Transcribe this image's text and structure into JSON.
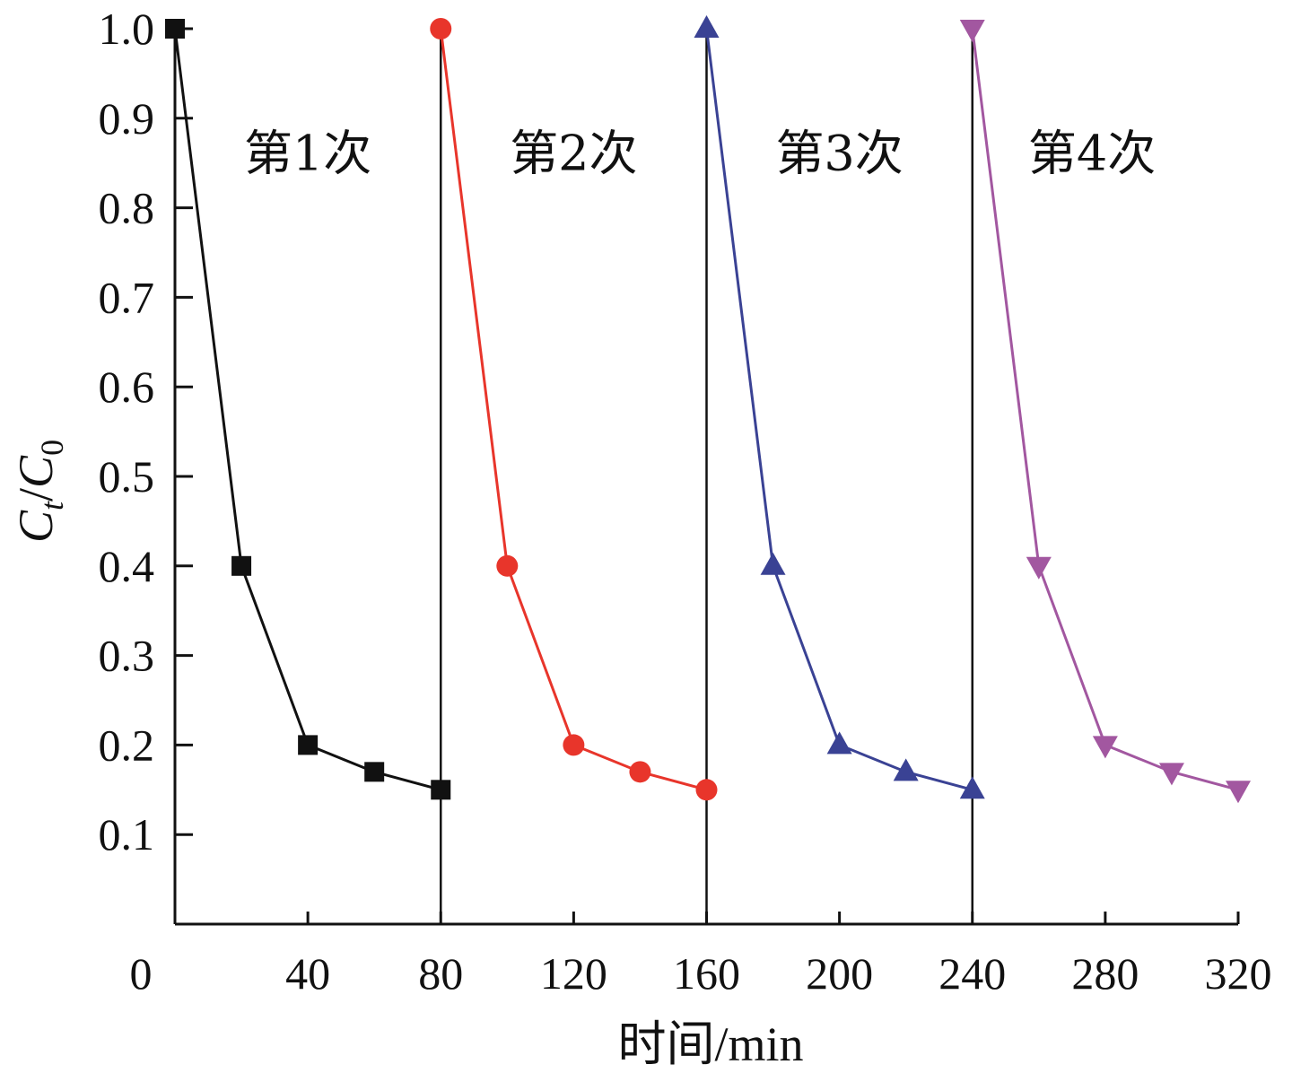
{
  "chart_data": {
    "type": "line",
    "xlabel": "时间/min",
    "ylabel_parts": {
      "main": "C",
      "sub_t": "t",
      "slash": "/",
      "main2": "C",
      "sub_0": "0"
    },
    "xlim": [
      0,
      320
    ],
    "ylim": [
      0,
      1.0
    ],
    "xticks": [
      0,
      40,
      80,
      120,
      160,
      200,
      240,
      280,
      320
    ],
    "yticks": [
      0.1,
      0.2,
      0.3,
      0.4,
      0.5,
      0.6,
      0.7,
      0.8,
      0.9,
      1.0
    ],
    "ytick_labels": [
      "0.1",
      "0.2",
      "0.3",
      "0.4",
      "0.5",
      "0.6",
      "0.7",
      "0.8",
      "0.9",
      "1.0"
    ],
    "separators_x": [
      80,
      160,
      240
    ],
    "grid": false,
    "series": [
      {
        "color": "#111111",
        "marker": "square",
        "x": [
          0,
          20,
          40,
          60,
          80
        ],
        "y": [
          1.0,
          0.4,
          0.2,
          0.17,
          0.15
        ]
      },
      {
        "color": "#e8352b",
        "marker": "circle",
        "x": [
          80,
          100,
          120,
          140,
          160
        ],
        "y": [
          1.0,
          0.4,
          0.2,
          0.17,
          0.15
        ]
      },
      {
        "color": "#3a4294",
        "marker": "triangle-up",
        "x": [
          160,
          180,
          200,
          220,
          240
        ],
        "y": [
          1.0,
          0.4,
          0.2,
          0.17,
          0.15
        ]
      },
      {
        "color": "#a257a0",
        "marker": "triangle-down",
        "x": [
          240,
          260,
          280,
          300,
          320
        ],
        "y": [
          1.0,
          0.4,
          0.2,
          0.17,
          0.15
        ]
      }
    ],
    "annotations": [
      {
        "text": "第1次",
        "x": 40,
        "y": 0.86
      },
      {
        "text": "第2次",
        "x": 120,
        "y": 0.86
      },
      {
        "text": "第3次",
        "x": 200,
        "y": 0.86
      },
      {
        "text": "第4次",
        "x": 276,
        "y": 0.86
      }
    ]
  }
}
